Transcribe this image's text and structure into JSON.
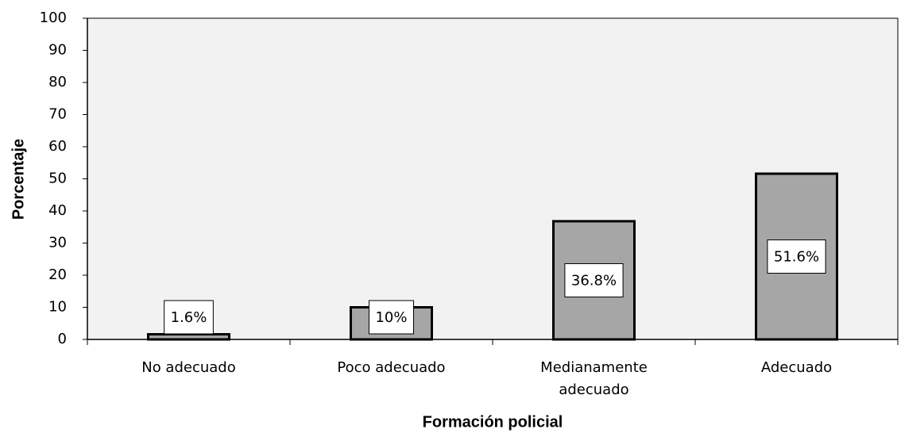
{
  "chart_data": {
    "type": "bar",
    "x_label": "Formación policial",
    "y_label": "Porcentaje",
    "categories": [
      "No adecuado",
      "Poco adecuado",
      "Medianamente adecuado",
      "Adecuado"
    ],
    "values": [
      1.6,
      10,
      36.8,
      51.6
    ],
    "value_labels": [
      "1.6%",
      "10%",
      "36.8%",
      "51.6%"
    ],
    "color": "#a6a6a6",
    "ylim": [
      0,
      100
    ],
    "yticks": [
      0,
      10,
      20,
      30,
      40,
      50,
      60,
      70,
      80,
      90,
      100
    ],
    "grid": false
  }
}
